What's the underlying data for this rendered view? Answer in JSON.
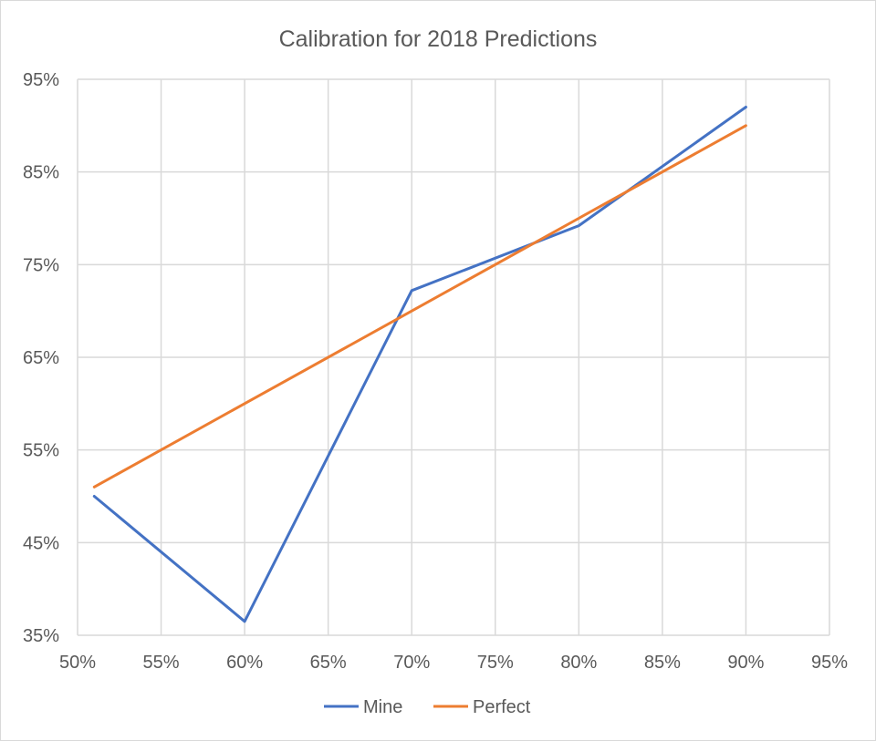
{
  "chart_data": {
    "type": "line",
    "title": "Calibration for 2018 Predictions",
    "xlabel": "",
    "ylabel": "",
    "xlim": [
      50,
      95
    ],
    "ylim": [
      35,
      95
    ],
    "x_ticks": [
      "50%",
      "55%",
      "60%",
      "65%",
      "70%",
      "75%",
      "80%",
      "85%",
      "90%",
      "95%"
    ],
    "y_ticks": [
      "35%",
      "45%",
      "55%",
      "65%",
      "75%",
      "85%",
      "95%"
    ],
    "x_tick_values": [
      50,
      55,
      60,
      65,
      70,
      75,
      80,
      85,
      90,
      95
    ],
    "y_tick_values": [
      35,
      45,
      55,
      65,
      75,
      85,
      95
    ],
    "grid": true,
    "legend_position": "bottom",
    "series": [
      {
        "name": "Mine",
        "color": "#4472c4",
        "x": [
          51,
          60,
          70,
          80,
          90
        ],
        "y": [
          50,
          36.5,
          72.2,
          79.2,
          92
        ]
      },
      {
        "name": "Perfect",
        "color": "#ed7d31",
        "x": [
          51,
          60,
          70,
          80,
          90
        ],
        "y": [
          51,
          60,
          70,
          80,
          90
        ]
      }
    ]
  }
}
